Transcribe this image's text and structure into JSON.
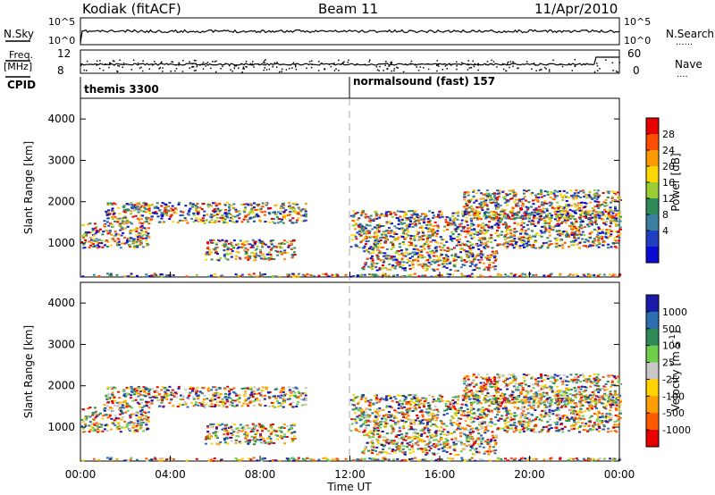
{
  "header": {
    "station": "Kodiak (fitACF)",
    "beam": "Beam 11",
    "date": "11/Apr/2010"
  },
  "strip_labels": {
    "nsky": "N.Sky",
    "freq": "Freq.",
    "freq_unit": "[MHz]",
    "cpid": "CPID",
    "nsearch": "N.Search",
    "nave": "Nave",
    "dotted_marker": "......",
    "dotted_marker_short": "...."
  },
  "strip_ticks": {
    "nsky_top": "10^5",
    "nsky_bottom": "10^0",
    "freq_top": "12",
    "freq_bottom": "8",
    "nave_top": "60",
    "nave_bottom": "0"
  },
  "cpid_segments": [
    {
      "label": "themis 3300",
      "start_hour": 0
    },
    {
      "label": "normalsound (fast) 157",
      "start_hour": 12
    }
  ],
  "colorbar_power": {
    "label": "Power [dB]",
    "ticks": [
      "28",
      "24",
      "20",
      "16",
      "12",
      "8",
      "4"
    ],
    "colors": [
      "#e60000",
      "#ff4d00",
      "#ff9900",
      "#ffd700",
      "#9acd32",
      "#2e8b57",
      "#3a7fa0",
      "#1f3fc0",
      "#0a0ad0"
    ]
  },
  "colorbar_velocity": {
    "label": "Velocity [m s",
    "label_sup": "-1",
    "label_close": "]",
    "ticks": [
      "1000",
      "500",
      "100",
      "25",
      "-25",
      "-100",
      "-500",
      "-1000"
    ],
    "colors": [
      "#1a1aa8",
      "#2c6fb0",
      "#2e8b57",
      "#6fcf4a",
      "#c8c8c8",
      "#ffd200",
      "#ff9e00",
      "#ff5a00",
      "#e60000"
    ]
  },
  "chart_data": [
    {
      "type": "heatmap",
      "panel": "power",
      "ylabel": "Slant Range [km]",
      "ylim": [
        180,
        4500
      ],
      "yticks": [
        1000,
        2000,
        3000,
        4000
      ],
      "xlim_hours": [
        0,
        24
      ],
      "echo_bands": [
        {
          "t0": 0.0,
          "t1": 3.0,
          "r0": 900,
          "r1": 1500
        },
        {
          "t0": 1.0,
          "t1": 10.0,
          "r0": 1500,
          "r1": 2000
        },
        {
          "t0": 5.5,
          "t1": 9.5,
          "r0": 600,
          "r1": 1100
        },
        {
          "t0": 12.5,
          "t1": 18.5,
          "r0": 350,
          "r1": 900
        },
        {
          "t0": 12.0,
          "t1": 24.0,
          "r0": 900,
          "r1": 1800
        },
        {
          "t0": 17.0,
          "t1": 24.0,
          "r0": 1600,
          "r1": 2300
        },
        {
          "t0": 0.0,
          "t1": 24.0,
          "r0": 200,
          "r1": 280
        }
      ]
    },
    {
      "type": "heatmap",
      "panel": "velocity",
      "ylabel": "Slant Range [km]",
      "xlabel": "Time UT",
      "ylim": [
        180,
        4500
      ],
      "yticks": [
        1000,
        2000,
        3000,
        4000
      ],
      "xlim_hours": [
        0,
        24
      ],
      "xticks": [
        "00:00",
        "04:00",
        "08:00",
        "12:00",
        "16:00",
        "20:00",
        "00:00"
      ]
    }
  ]
}
